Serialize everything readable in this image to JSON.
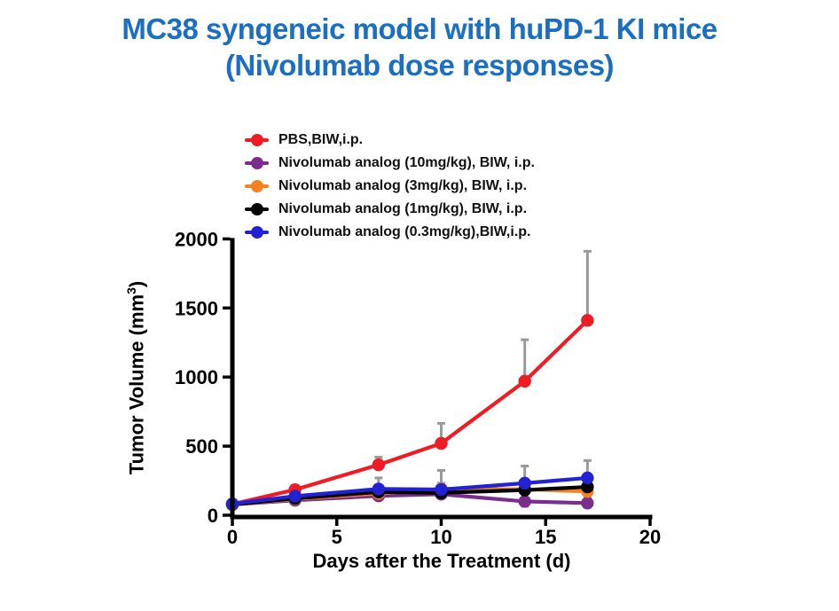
{
  "title": {
    "line1": "MC38 syngeneic model with huPD-1 KI mice",
    "line2": "(Nivolumab dose responses)",
    "color": "#1B6FC2"
  },
  "axis_labels": {
    "ylabel_prefix": "Tumor Volume (mm",
    "ylabel_sup": "3",
    "ylabel_suffix": ")",
    "xlabel": "Days after the Treatment (d)"
  },
  "chart_data": {
    "type": "line",
    "title": "MC38 syngeneic model with huPD-1 KI mice (Nivolumab dose responses)",
    "xlabel": "Days after the Treatment (d)",
    "ylabel": "Tumor Volume (mm3)",
    "x": [
      0,
      3,
      7,
      10,
      14,
      17
    ],
    "xlim": [
      0,
      20
    ],
    "ylim": [
      0,
      2000
    ],
    "xticks": [
      0,
      5,
      10,
      15,
      20
    ],
    "yticks": [
      0,
      500,
      1000,
      1500,
      2000
    ],
    "grid": false,
    "legend_position": "top-inside-left",
    "error_bar_color": "#999999",
    "series": [
      {
        "name": "PBS,BIW,i.p.",
        "color": "#EE1C25",
        "values": [
          80,
          185,
          365,
          520,
          970,
          1410
        ],
        "err_up": [
          0,
          30,
          55,
          145,
          300,
          500
        ],
        "err_down": [
          0,
          0,
          0,
          0,
          0,
          0
        ]
      },
      {
        "name": "Nivolumab analog (10mg/kg), BIW, i.p.",
        "color": "#7B2D8E",
        "values": [
          78,
          108,
          140,
          152,
          100,
          88
        ],
        "err_up": [
          0,
          0,
          0,
          0,
          0,
          0
        ],
        "err_down": [
          0,
          0,
          0,
          0,
          35,
          30
        ]
      },
      {
        "name": "Nivolumab analog (3mg/kg), BIW, i.p.",
        "color": "#F58220",
        "values": [
          78,
          118,
          158,
          190,
          188,
          172
        ],
        "err_up": [
          0,
          0,
          0,
          42,
          58,
          0
        ],
        "err_down": [
          0,
          0,
          0,
          0,
          0,
          38
        ]
      },
      {
        "name": "Nivolumab analog (1mg/kg), BIW, i.p.",
        "color": "#000000",
        "values": [
          78,
          122,
          168,
          162,
          182,
          205
        ],
        "err_up": [
          0,
          0,
          0,
          0,
          0,
          0
        ],
        "err_down": [
          0,
          0,
          0,
          0,
          0,
          0
        ]
      },
      {
        "name": "Nivolumab analog (0.3mg/kg),BIW,i.p.",
        "color": "#2222D2",
        "values": [
          82,
          138,
          190,
          186,
          232,
          270
        ],
        "err_up": [
          0,
          0,
          80,
          138,
          124,
          126
        ],
        "err_down": [
          0,
          0,
          0,
          0,
          0,
          0
        ]
      }
    ],
    "draw_order": [
      1,
      2,
      3,
      0,
      4
    ]
  }
}
